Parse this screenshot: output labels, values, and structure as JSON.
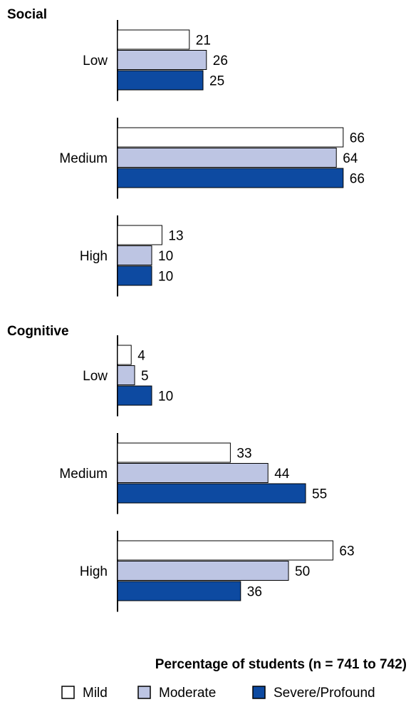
{
  "chart_data": {
    "type": "bar",
    "orientation": "horizontal",
    "xlabel": "Percentage of students (n = 741 to 742)",
    "legend_position": "bottom",
    "grid": false,
    "xlim": [
      0,
      100
    ],
    "series": [
      {
        "name": "Mild",
        "color": "#ffffff"
      },
      {
        "name": "Moderate",
        "color": "#bdc5e3"
      },
      {
        "name": "Severe/Profound",
        "color": "#0d4aa1"
      }
    ],
    "panels": [
      {
        "title": "Social",
        "categories": [
          "Low",
          "Medium",
          "High"
        ],
        "values": [
          [
            21,
            26,
            25
          ],
          [
            66,
            64,
            66
          ],
          [
            13,
            10,
            10
          ]
        ]
      },
      {
        "title": "Cognitive",
        "categories": [
          "Low",
          "Medium",
          "High"
        ],
        "values": [
          [
            4,
            5,
            10
          ],
          [
            33,
            44,
            55
          ],
          [
            63,
            50,
            36
          ]
        ]
      }
    ]
  }
}
